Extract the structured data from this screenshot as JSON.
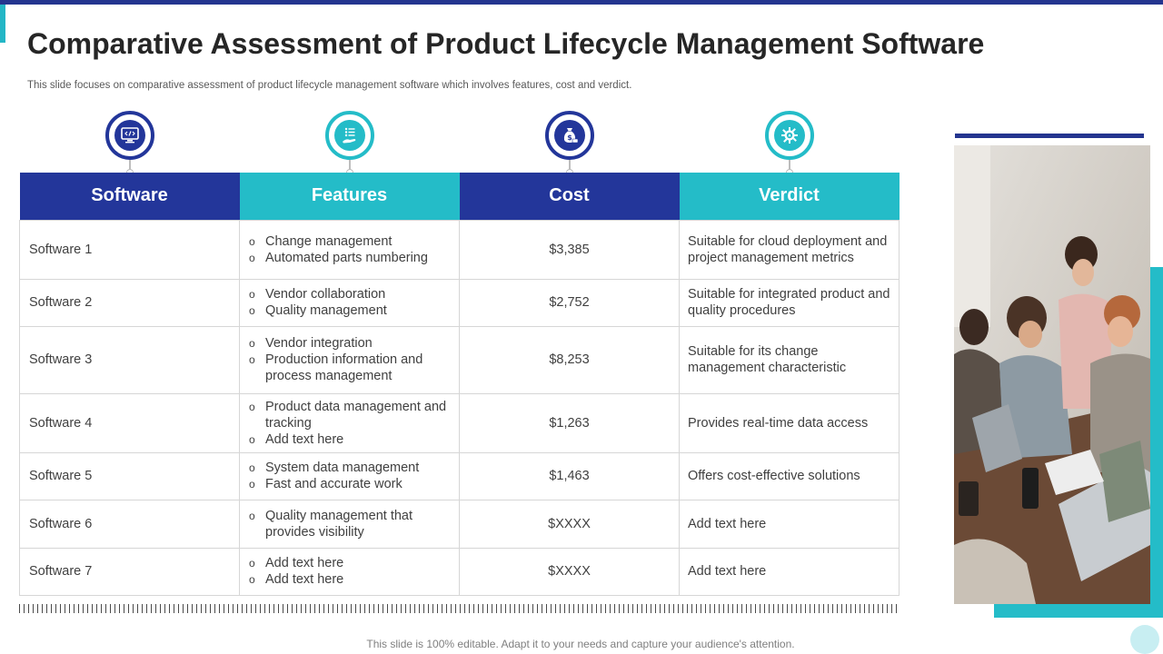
{
  "slide": {
    "title": "Comparative Assessment of Product Lifecycle Management Software",
    "subtitle": "This slide focuses on comparative assessment of product lifecycle management software which involves features, cost and verdict.",
    "footer": "This slide is 100% editable. Adapt it to your needs and capture your audience's attention."
  },
  "colors": {
    "navy": "#23369a",
    "teal": "#24bcc8"
  },
  "icons": [
    {
      "name": "monitor-code-icon",
      "color": "navy"
    },
    {
      "name": "hand-list-icon",
      "color": "teal"
    },
    {
      "name": "money-bag-icon",
      "color": "navy"
    },
    {
      "name": "gear-cog-icon",
      "color": "teal"
    }
  ],
  "table": {
    "headers": [
      "Software",
      "Features",
      "Cost",
      "Verdict"
    ],
    "rows": [
      {
        "software": "Software 1",
        "features": [
          "Change management",
          "Automated parts numbering"
        ],
        "cost": "$3,385",
        "verdict": "Suitable for cloud deployment and project management metrics"
      },
      {
        "software": "Software 2",
        "features": [
          "Vendor collaboration",
          "Quality management"
        ],
        "cost": "$2,752",
        "verdict": "Suitable for integrated product and quality procedures"
      },
      {
        "software": "Software 3",
        "features": [
          "Vendor integration",
          "Production information and process management"
        ],
        "cost": "$8,253",
        "verdict": "Suitable for its change management characteristic"
      },
      {
        "software": "Software 4",
        "features": [
          "Product data management and tracking",
          "Add text here"
        ],
        "cost": "$1,263",
        "verdict": "Provides real-time data access"
      },
      {
        "software": "Software 5",
        "features": [
          "System data management",
          "Fast and accurate work"
        ],
        "cost": "$1,463",
        "verdict": "Offers cost-effective solutions"
      },
      {
        "software": "Software 6",
        "features": [
          "Quality management that provides visibility"
        ],
        "cost": "$XXXX",
        "verdict": "Add text here"
      },
      {
        "software": "Software 7",
        "features": [
          "Add text here",
          "Add text here"
        ],
        "cost": "$XXXX",
        "verdict": "Add text here"
      }
    ]
  }
}
